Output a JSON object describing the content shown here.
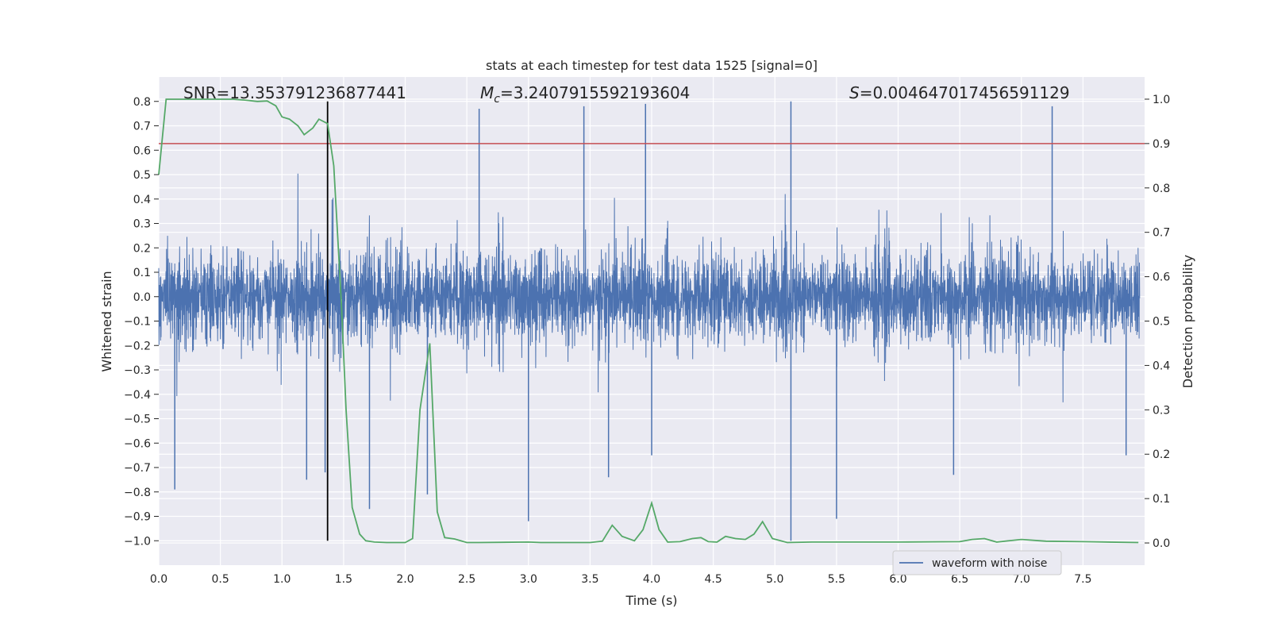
{
  "chart_data": {
    "type": "line",
    "title": "stats at each timestep for test data 1525 [signal=0]",
    "xlabel": "Time (s)",
    "ylabel": "Whitened strain",
    "y2label": "Detection probability",
    "xlim": [
      0.0,
      8.0
    ],
    "ylim": [
      -1.1,
      0.9
    ],
    "y2lim": [
      -0.05,
      1.05
    ],
    "x_ticks": [
      "0.0",
      "0.5",
      "1.0",
      "1.5",
      "2.0",
      "2.5",
      "3.0",
      "3.5",
      "4.0",
      "4.5",
      "5.0",
      "5.5",
      "6.0",
      "6.5",
      "7.0",
      "7.5"
    ],
    "y_ticks": [
      "0.8",
      "0.7",
      "0.6",
      "0.5",
      "0.4",
      "0.3",
      "0.2",
      "0.1",
      "0.0",
      "−0.1",
      "−0.2",
      "−0.3",
      "−0.4",
      "−0.5",
      "−0.6",
      "−0.7",
      "−0.8",
      "−0.9",
      "−1.0"
    ],
    "y2_ticks": [
      "1.0",
      "0.9",
      "0.8",
      "0.7",
      "0.6",
      "0.5",
      "0.4",
      "0.3",
      "0.2",
      "0.1",
      "0.0"
    ],
    "grid": true,
    "legend_position": "lower-right",
    "annotations": {
      "snr": "SNR=13.353791236877441",
      "mc_symbol": "M",
      "mc_sub": "c",
      "mc_value": "=3.2407915592193604",
      "s_symbol": "S",
      "s_value": "=0.004647017456591129"
    },
    "threshold": {
      "axis": "y2",
      "value": 0.9,
      "color": "#c44e52"
    },
    "marker_line": {
      "x": 1.37,
      "color": "#000000"
    },
    "series": [
      {
        "name": "waveform with noise",
        "axis": "y",
        "color": "#4c72b0",
        "envelope_note": "dense noise, typical band approx ±0.45",
        "peaks": [
          {
            "x": 0.13,
            "y": -0.79
          },
          {
            "x": 1.2,
            "y": -0.75
          },
          {
            "x": 1.35,
            "y": -0.72
          },
          {
            "x": 1.71,
            "y": -0.87
          },
          {
            "x": 2.18,
            "y": -0.81
          },
          {
            "x": 2.6,
            "y": 0.77
          },
          {
            "x": 3.0,
            "y": -0.92
          },
          {
            "x": 3.45,
            "y": 0.78
          },
          {
            "x": 3.65,
            "y": -0.74
          },
          {
            "x": 3.95,
            "y": 0.79
          },
          {
            "x": 4.0,
            "y": -0.65
          },
          {
            "x": 5.13,
            "y": 0.8
          },
          {
            "x": 5.13,
            "y": -1.0
          },
          {
            "x": 5.5,
            "y": -0.91
          },
          {
            "x": 6.45,
            "y": -0.73
          },
          {
            "x": 7.25,
            "y": 0.78
          },
          {
            "x": 7.85,
            "y": -0.65
          }
        ]
      },
      {
        "name": "",
        "axis": "y2",
        "color": "#55a868",
        "x": [
          0.0,
          0.06,
          0.1,
          0.2,
          0.4,
          0.6,
          0.7,
          0.8,
          0.88,
          0.95,
          1.0,
          1.06,
          1.13,
          1.18,
          1.25,
          1.3,
          1.37,
          1.42,
          1.48,
          1.52,
          1.57,
          1.63,
          1.68,
          1.75,
          1.85,
          2.0,
          2.06,
          2.12,
          2.2,
          2.26,
          2.32,
          2.4,
          2.5,
          2.6,
          3.0,
          3.1,
          3.5,
          3.6,
          3.68,
          3.76,
          3.86,
          3.93,
          4.0,
          4.06,
          4.13,
          4.23,
          4.33,
          4.4,
          4.46,
          4.53,
          4.6,
          4.68,
          4.76,
          4.83,
          4.9,
          4.98,
          5.1,
          5.3,
          5.5,
          6.0,
          6.5,
          6.6,
          6.7,
          6.8,
          7.0,
          7.2,
          7.5,
          7.95
        ],
        "values": [
          0.83,
          1.0,
          1.0,
          1.0,
          1.0,
          1.0,
          0.998,
          0.995,
          0.996,
          0.985,
          0.96,
          0.955,
          0.94,
          0.92,
          0.935,
          0.955,
          0.945,
          0.85,
          0.55,
          0.3,
          0.08,
          0.02,
          0.005,
          0.002,
          0.001,
          0.001,
          0.01,
          0.3,
          0.45,
          0.07,
          0.012,
          0.009,
          0.001,
          0.001,
          0.002,
          0.001,
          0.001,
          0.004,
          0.04,
          0.015,
          0.005,
          0.03,
          0.09,
          0.03,
          0.002,
          0.003,
          0.01,
          0.012,
          0.003,
          0.002,
          0.015,
          0.01,
          0.008,
          0.02,
          0.048,
          0.01,
          0.001,
          0.002,
          0.002,
          0.002,
          0.003,
          0.008,
          0.01,
          0.002,
          0.008,
          0.004,
          0.003,
          0.001
        ]
      }
    ]
  }
}
